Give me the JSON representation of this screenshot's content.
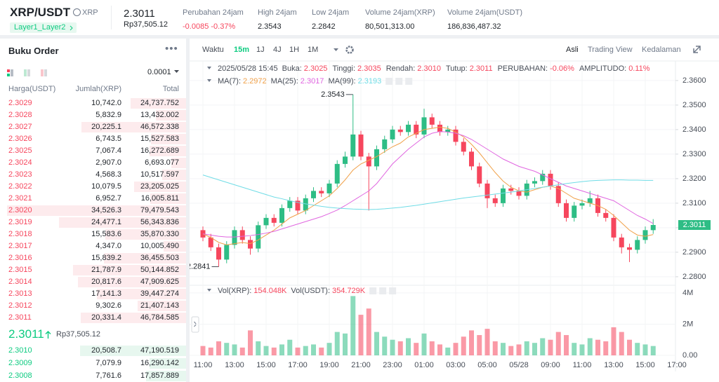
{
  "header": {
    "symbol": "XRP/USDT",
    "base": "XRP",
    "tag": "Layer1_Layer2",
    "price": "2.3011",
    "price_idr": "Rp37,505.12",
    "stats": [
      {
        "label": "Perubahan 24jam",
        "value": "-0.0085 -0.37%"
      },
      {
        "label": "High 24jam",
        "value": "2.3543"
      },
      {
        "label": "Low 24jam",
        "value": "2.2842"
      },
      {
        "label": "Volume 24jam(XRP)",
        "value": "80,501,313.00"
      },
      {
        "label": "Volume 24jam(USDT)",
        "value": "186,836,487.32"
      }
    ]
  },
  "order_book": {
    "title": "Buku Order",
    "precision": "0.0001",
    "columns": [
      "Harga(USDT)",
      "Jumlah(XRP)",
      "Total"
    ],
    "asks": [
      [
        "2.3029",
        "10,742.0",
        "24,737.752"
      ],
      [
        "2.3028",
        "5,832.9",
        "13,432.002"
      ],
      [
        "2.3027",
        "20,225.1",
        "46,572.338"
      ],
      [
        "2.3026",
        "6,743.5",
        "15,527.583"
      ],
      [
        "2.3025",
        "7,067.4",
        "16,272.689"
      ],
      [
        "2.3024",
        "2,907.0",
        "6,693.077"
      ],
      [
        "2.3023",
        "4,568.3",
        "10,517.597"
      ],
      [
        "2.3022",
        "10,079.5",
        "23,205.025"
      ],
      [
        "2.3021",
        "6,952.7",
        "16,005.811"
      ],
      [
        "2.3020",
        "34,526.3",
        "79,479.543"
      ],
      [
        "2.3019",
        "24,477.1",
        "56,343.836"
      ],
      [
        "2.3018",
        "15,583.6",
        "35,870.330"
      ],
      [
        "2.3017",
        "4,347.0",
        "10,005.490"
      ],
      [
        "2.3016",
        "15,839.2",
        "36,455.503"
      ],
      [
        "2.3015",
        "21,787.9",
        "50,144.852"
      ],
      [
        "2.3014",
        "20,817.6",
        "47,909.625"
      ],
      [
        "2.3013",
        "17,141.3",
        "39,447.274"
      ],
      [
        "2.3012",
        "9,302.6",
        "21,407.143"
      ],
      [
        "2.3011",
        "20,331.4",
        "46,784.585"
      ]
    ],
    "mid_price": "2.3011",
    "mid_price_idr": "Rp37,505.12",
    "bids": [
      [
        "2.3010",
        "20,508.7",
        "47,190.519"
      ],
      [
        "2.3009",
        "7,079.9",
        "16,290.142"
      ],
      [
        "2.3008",
        "7,761.6",
        "17,857.889"
      ]
    ]
  },
  "chart_toolbar": {
    "intervals": [
      "Waktu",
      "15m",
      "1J",
      "4J",
      "1H",
      "1M"
    ],
    "active_interval": "15m",
    "views": [
      "Asli",
      "Trading View",
      "Kedalaman"
    ],
    "active_view": "Asli"
  },
  "chart_data": {
    "type": "candlestick",
    "open": [
      2.299,
      2.296,
      2.292,
      2.287,
      2.293,
      2.299,
      2.295,
      2.2915,
      2.301,
      2.304,
      2.302,
      2.308,
      2.311,
      2.307,
      2.312,
      2.315,
      2.314,
      2.318,
      2.326,
      2.329,
      2.338,
      2.329,
      2.325,
      2.332,
      2.336,
      2.34,
      2.339,
      2.342,
      2.338,
      2.345,
      2.342,
      2.339,
      2.34,
      2.335,
      2.331,
      2.325,
      2.318,
      2.312,
      2.31,
      2.316,
      2.315,
      2.313,
      2.318,
      2.319,
      2.322,
      2.317,
      2.31,
      2.304,
      2.309,
      2.31,
      2.312,
      2.306,
      2.304,
      2.296,
      2.292,
      2.291,
      2.295,
      2.299
    ],
    "high": [
      2.3005,
      2.2975,
      2.2935,
      2.2945,
      2.3005,
      2.3005,
      2.2965,
      2.3025,
      2.3055,
      2.3055,
      2.3095,
      2.3125,
      2.3125,
      2.3135,
      2.3165,
      2.3165,
      2.3195,
      2.3275,
      2.331,
      2.3543,
      2.3395,
      2.3305,
      2.3335,
      2.3375,
      2.3415,
      2.3415,
      2.3435,
      2.3435,
      2.3485,
      2.3465,
      2.3435,
      2.3415,
      2.3415,
      2.3365,
      2.3325,
      2.3265,
      2.3195,
      2.3135,
      2.3175,
      2.3175,
      2.3165,
      2.3195,
      2.3205,
      2.3235,
      2.3235,
      2.3185,
      2.3115,
      2.3105,
      2.3115,
      2.315,
      2.3135,
      2.3075,
      2.3055,
      2.2975,
      2.2935,
      2.2965,
      2.3005,
      2.3035
    ],
    "low": [
      2.2945,
      2.2905,
      2.2841,
      2.2855,
      2.2915,
      2.2935,
      2.289,
      2.29,
      2.2995,
      2.3005,
      2.3005,
      2.3065,
      2.3055,
      2.3055,
      2.3105,
      2.3125,
      2.3125,
      2.3165,
      2.3245,
      2.3275,
      2.3275,
      2.307,
      2.3235,
      2.3305,
      2.3345,
      2.3375,
      2.3375,
      2.3365,
      2.3365,
      2.3405,
      2.3375,
      2.3375,
      2.3335,
      2.3295,
      2.3235,
      2.3165,
      2.308,
      2.3085,
      2.3085,
      2.3135,
      2.3115,
      2.3115,
      2.3165,
      2.3175,
      2.3155,
      2.3085,
      2.3025,
      2.3025,
      2.3075,
      2.3085,
      2.3045,
      2.3025,
      2.2945,
      2.2895,
      2.286,
      2.2895,
      2.2935,
      2.2975
    ],
    "close": [
      2.296,
      2.292,
      2.287,
      2.293,
      2.299,
      2.295,
      2.2915,
      2.301,
      2.304,
      2.302,
      2.308,
      2.311,
      2.307,
      2.312,
      2.315,
      2.314,
      2.318,
      2.326,
      2.329,
      2.338,
      2.329,
      2.325,
      2.332,
      2.336,
      2.34,
      2.339,
      2.342,
      2.338,
      2.345,
      2.342,
      2.339,
      2.34,
      2.335,
      2.331,
      2.325,
      2.318,
      2.312,
      2.31,
      2.316,
      2.315,
      2.313,
      2.318,
      2.319,
      2.322,
      2.317,
      2.31,
      2.304,
      2.309,
      2.31,
      2.312,
      2.306,
      2.304,
      2.296,
      2.292,
      2.291,
      2.295,
      2.299,
      2.3011
    ],
    "volume": [
      600000,
      500000,
      900000,
      800000,
      700000,
      500000,
      1600000,
      900000,
      600000,
      500000,
      700000,
      1000000,
      500000,
      600000,
      700000,
      500000,
      800000,
      1500000,
      1400000,
      3800000,
      2600000,
      3000000,
      1500000,
      1200000,
      1000000,
      900000,
      1100000,
      800000,
      1400000,
      900000,
      700000,
      500000,
      800000,
      1200000,
      1600000,
      1300000,
      1700000,
      900000,
      800000,
      600000,
      700000,
      900000,
      800000,
      1100000,
      1000000,
      1500000,
      1300000,
      800000,
      700000,
      1100000,
      1000000,
      900000,
      1800000,
      1500000,
      1000000,
      800000,
      700000,
      600000
    ],
    "up_color": "#2ebd85",
    "down_color": "#f6465d",
    "ma": [
      {
        "name": "MA(7):",
        "color": "#f0a14a",
        "values": [
          2.2975,
          2.296,
          2.294,
          2.293,
          2.2935,
          2.294,
          2.2935,
          2.295,
          2.297,
          2.299,
          2.3015,
          2.304,
          2.3055,
          2.307,
          2.309,
          2.311,
          2.313,
          2.316,
          2.3195,
          2.3235,
          2.326,
          2.3275,
          2.329,
          2.331,
          2.333,
          2.3345,
          2.337,
          2.3385,
          2.34,
          2.3405,
          2.341,
          2.3405,
          2.339,
          2.337,
          2.334,
          2.3305,
          2.3265,
          2.3225,
          2.319,
          2.3165,
          2.315,
          2.3145,
          2.3155,
          2.3165,
          2.317,
          2.316,
          2.314,
          2.312,
          2.311,
          2.31,
          2.309,
          2.3075,
          2.305,
          2.302,
          2.299,
          2.297,
          2.2965,
          2.2972
        ]
      },
      {
        "name": "MA(25):",
        "color": "#e066e0",
        "values": [
          2.2975,
          2.297,
          2.2965,
          2.2962,
          2.2962,
          2.2965,
          2.2968,
          2.2972,
          2.2978,
          2.2985,
          2.2995,
          2.3005,
          2.3015,
          2.3025,
          2.3035,
          2.3045,
          2.3058,
          2.3072,
          2.309,
          2.311,
          2.313,
          2.315,
          2.318,
          2.322,
          2.326,
          2.329,
          2.332,
          2.3345,
          2.337,
          2.3385,
          2.3392,
          2.339,
          2.3385,
          2.3375,
          2.336,
          2.334,
          2.332,
          2.33,
          2.328,
          2.3265,
          2.325,
          2.324,
          2.323,
          2.3215,
          2.32,
          2.3185,
          2.317,
          2.316,
          2.315,
          2.314,
          2.313,
          2.312,
          2.311,
          2.309,
          2.307,
          2.305,
          2.3035,
          2.3017
        ]
      },
      {
        "name": "MA(99):",
        "color": "#6fdce6",
        "values": [
          2.3215,
          2.3205,
          2.3195,
          2.3185,
          2.3175,
          2.3165,
          2.3155,
          2.3145,
          2.3135,
          2.3125,
          2.3118,
          2.311,
          2.3103,
          2.3097,
          2.3092,
          2.3087,
          2.3083,
          2.308,
          2.3078,
          2.3076,
          2.3075,
          2.3074,
          2.3075,
          2.3077,
          2.308,
          2.3083,
          2.3087,
          2.3091,
          2.3096,
          2.3101,
          2.3106,
          2.3111,
          2.3116,
          2.3121,
          2.3125,
          2.3129,
          2.3133,
          2.3137,
          2.3141,
          2.3145,
          2.315,
          2.3155,
          2.316,
          2.3165,
          2.317,
          2.3175,
          2.318,
          2.3184,
          2.3188,
          2.3191,
          2.3193,
          2.3194,
          2.3195,
          2.3195,
          2.3194,
          2.3194,
          2.3193,
          2.3193
        ]
      }
    ],
    "ylim": [
      2.2771,
      2.3634
    ],
    "yticks": [
      {
        "value": 2.36,
        "label": "2.3600"
      },
      {
        "value": 2.35,
        "label": "2.3500"
      },
      {
        "value": 2.34,
        "label": "2.3400"
      },
      {
        "value": 2.33,
        "label": "2.3300"
      },
      {
        "value": 2.32,
        "label": "2.3200"
      },
      {
        "value": 2.31,
        "label": "2.3100"
      },
      {
        "value": 2.3,
        "label": "2.3000"
      },
      {
        "value": 2.29,
        "label": "2.2900"
      },
      {
        "value": 2.28,
        "label": "2.2800"
      }
    ],
    "volume_ylim": [
      0,
      4400000
    ],
    "volume_yticks": [
      {
        "value": 4000000,
        "label": "4M"
      },
      {
        "value": 2000000,
        "label": "2M"
      },
      {
        "value": 0,
        "label": "0.00"
      }
    ],
    "xticks": [
      {
        "value": 0,
        "label": "11:00"
      },
      {
        "value": 4,
        "label": "13:00"
      },
      {
        "value": 8,
        "label": "15:00"
      },
      {
        "value": 12,
        "label": "17:00"
      },
      {
        "value": 16,
        "label": "19:00"
      },
      {
        "value": 20,
        "label": "21:00"
      },
      {
        "value": 24,
        "label": "23:00"
      },
      {
        "value": 28,
        "label": "01:00"
      },
      {
        "value": 32,
        "label": "03:00"
      },
      {
        "value": 36,
        "label": "05:00"
      },
      {
        "value": 40,
        "label": "05/28"
      },
      {
        "value": 44,
        "label": "09:00"
      },
      {
        "value": 48,
        "label": "11:00"
      },
      {
        "value": 52,
        "label": "13:00"
      },
      {
        "value": 56,
        "label": "15:00"
      },
      {
        "value": 60,
        "label": "17:00"
      }
    ],
    "grid": true,
    "info_date": "2025/05/28 15:45",
    "info": [
      {
        "label": "Buka:",
        "value": "2.3025"
      },
      {
        "label": "Tinggi:",
        "value": "2.3035"
      },
      {
        "label": "Rendah:",
        "value": "2.3010"
      },
      {
        "label": "Tutup:",
        "value": "2.3011"
      },
      {
        "label": "PERUBAHAN:",
        "value": "-0.06%"
      },
      {
        "label": "AMPLITUDO:",
        "value": "0.11%"
      }
    ],
    "volume_legend": [
      {
        "label": "Vol(XRP):",
        "value": "154.048K"
      },
      {
        "label": "Vol(USDT):",
        "value": "354.729K"
      }
    ]
  }
}
